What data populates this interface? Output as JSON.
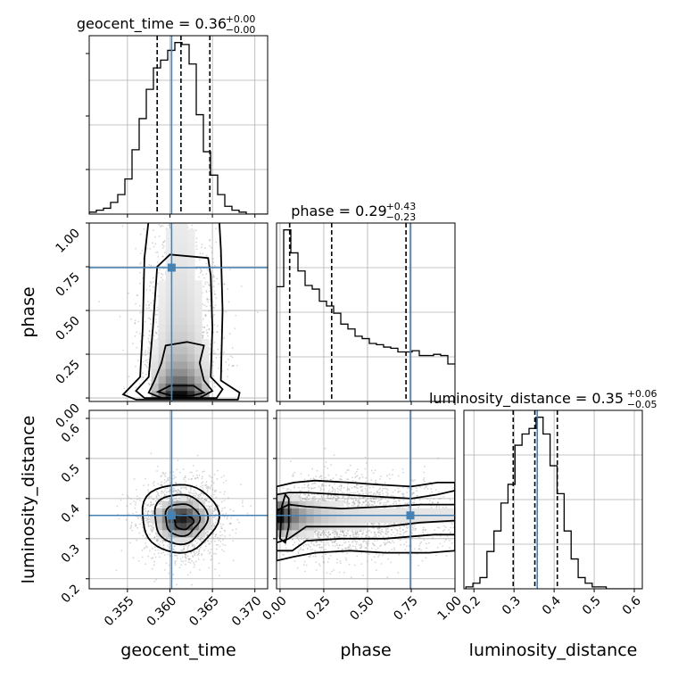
{
  "chart_data": {
    "type": "corner",
    "parameters": [
      "geocent_time",
      "phase",
      "luminosity_distance"
    ],
    "truth_color": "#4682b4",
    "axes": {
      "geocent_time": {
        "range": [
          0.3505,
          0.3715
        ],
        "ticks": [
          0.355,
          0.36,
          0.365,
          0.37
        ],
        "tick_labels": [
          "0.355",
          "0.360",
          "0.365",
          "0.370"
        ],
        "truth": 0.3602
      },
      "phase": {
        "range": [
          -0.02,
          1.0
        ],
        "ticks": [
          0.0,
          0.25,
          0.5,
          0.75,
          1.0
        ],
        "tick_labels": [
          "0.00",
          "0.25",
          "0.50",
          "0.75",
          "1.00"
        ],
        "truth": 0.745
      },
      "luminosity_distance": {
        "range": [
          0.175,
          0.62
        ],
        "ticks": [
          0.2,
          0.3,
          0.4,
          0.5,
          0.6
        ],
        "tick_labels": [
          "0.2",
          "0.3",
          "0.4",
          "0.5",
          "0.6"
        ],
        "truth": 0.358
      }
    },
    "titles": [
      {
        "param": "geocent_time",
        "label": "geocent_time = 0.36",
        "sup": "+0.00",
        "sub": "−0.00"
      },
      {
        "param": "phase",
        "label": "phase = 0.29",
        "sup": "+0.43",
        "sub": "−0.23"
      },
      {
        "param": "luminosity_distance",
        "label": "luminosity_distance = 0.35",
        "sup": "+0.06",
        "sub": "−0.05"
      }
    ],
    "histograms": {
      "geocent_time": {
        "edges_start": 0.3505,
        "bin_width": 0.00084,
        "counts": [
          1,
          2,
          3,
          6,
          10,
          18,
          33,
          49,
          64,
          75,
          79,
          84,
          88,
          87,
          77,
          51,
          32,
          20,
          10,
          4,
          2,
          1,
          0,
          0,
          0
        ],
        "quantiles": [
          0.3585,
          0.3613,
          0.3647
        ]
      },
      "phase": {
        "edges_start": -0.02,
        "bin_width": 0.0408,
        "counts": [
          95,
          142,
          123,
          108,
          96,
          93,
          83,
          79,
          73,
          64,
          60,
          54,
          52,
          48,
          47,
          45,
          44,
          41,
          41,
          42,
          38,
          38,
          39,
          38,
          31
        ],
        "quantiles": [
          0.055,
          0.295,
          0.72
        ]
      },
      "luminosity_distance": {
        "edges_start": 0.18,
        "bin_width": 0.0175,
        "counts": [
          1,
          3,
          6,
          20,
          31,
          46,
          56,
          77,
          83,
          86,
          92,
          83,
          66,
          51,
          31,
          16,
          6,
          3,
          1,
          1,
          0,
          0,
          0,
          0,
          0
        ],
        "quantiles": [
          0.298,
          0.352,
          0.408
        ]
      }
    }
  }
}
